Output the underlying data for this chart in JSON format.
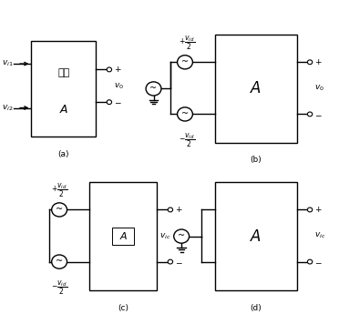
{
  "bg_color": "#ffffff",
  "fig_width": 3.83,
  "fig_height": 3.45,
  "dpi": 100,
  "lw": 1.0,
  "fs_small": 6.5,
  "fs_med": 8,
  "fs_large": 10,
  "r_source": 0.022,
  "r_terminal": 0.007,
  "subplots_labels": [
    "(a)",
    "(b)",
    "(c)",
    "(d)"
  ]
}
